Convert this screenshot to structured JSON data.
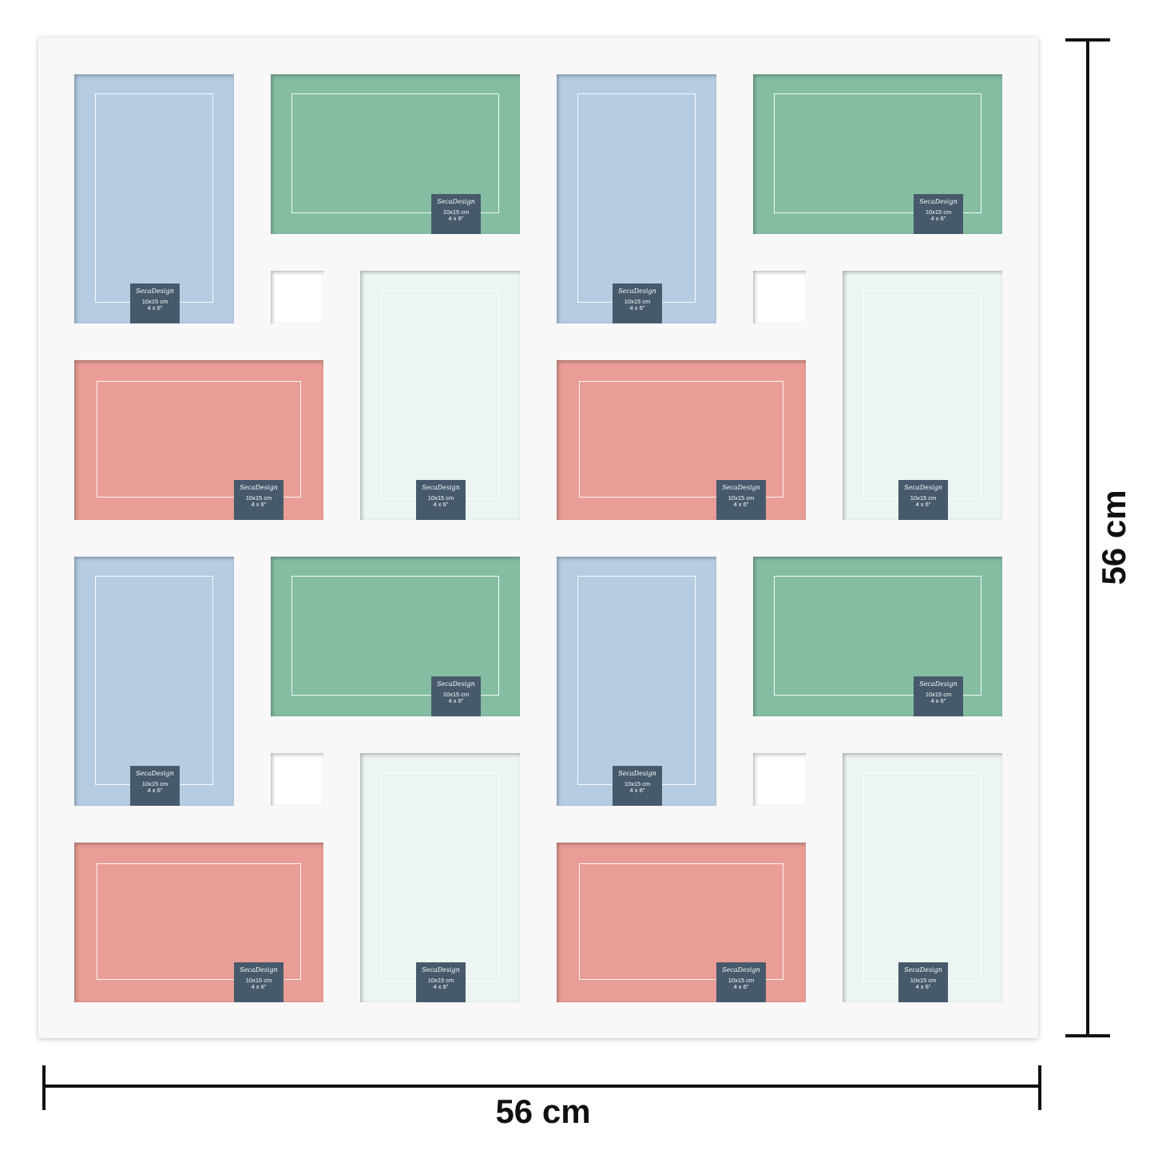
{
  "colors": {
    "blue": "#b5cce3",
    "green": "#84bda2",
    "red": "#e99d96",
    "mint": "#ecf5f1",
    "white": "#ffffff",
    "label": "#465a6b"
  },
  "slot_label": {
    "brand": "SecaDesign",
    "size_cm": "10x15 cm",
    "size_in": "4 x 6\""
  },
  "dimensions": {
    "width": "56 cm",
    "height": "56 cm"
  }
}
